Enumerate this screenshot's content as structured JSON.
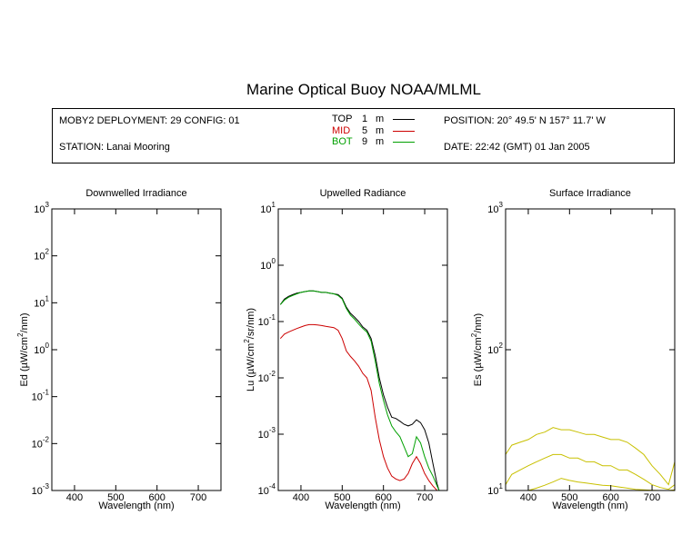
{
  "header": {
    "title": "Marine Optical Buoy NOAA/MLML",
    "deployment": "MOBY2 DEPLOYMENT: 29 CONFIG: 01",
    "station": "STATION: Lanai Mooring",
    "position": "POSITION: 20° 49.5' N   157° 11.7' W",
    "date": "DATE: 22:42 (GMT) 01 Jan 2005",
    "legend": [
      {
        "label": "TOP",
        "depth": "1",
        "unit": "m",
        "color": "#000000"
      },
      {
        "label": "MID",
        "depth": "5",
        "unit": "m",
        "color": "#cc0000"
      },
      {
        "label": "BOT",
        "depth": "9",
        "unit": "m",
        "color": "#00a000"
      }
    ]
  },
  "chart_data": [
    {
      "type": "line",
      "title": "Downwelled Irradiance",
      "xlabel": "Wavelength (nm)",
      "ylabel_prefix": "Ed  (µW/cm",
      "ylabel_sup": "2",
      "ylabel_suffix": "/nm)",
      "xlim": [
        345,
        755
      ],
      "xticks": [
        400,
        500,
        600,
        700
      ],
      "ylim_log10": [
        -3,
        3
      ],
      "ytick_exponents": [
        -3,
        -2,
        -1,
        0,
        1,
        2,
        3
      ],
      "scale": "log",
      "series": []
    },
    {
      "type": "line",
      "title": "Upwelled Radiance",
      "xlabel": "Wavelength (nm)",
      "ylabel_prefix": "Lu  (µW/cm",
      "ylabel_sup": "2",
      "ylabel_suffix": "/sr/nm)",
      "xlim": [
        345,
        755
      ],
      "xticks": [
        400,
        500,
        600,
        700
      ],
      "ylim_log10": [
        -4,
        1
      ],
      "ytick_exponents": [
        -4,
        -3,
        -2,
        -1,
        0,
        1
      ],
      "scale": "log",
      "series": [
        {
          "color": "#000000",
          "x": [
            350,
            360,
            370,
            380,
            390,
            400,
            410,
            420,
            430,
            440,
            450,
            460,
            470,
            480,
            490,
            500,
            510,
            520,
            530,
            540,
            550,
            560,
            570,
            580,
            590,
            600,
            610,
            620,
            630,
            640,
            650,
            660,
            670,
            680,
            690,
            700,
            710,
            720,
            730,
            735
          ],
          "y": [
            0.2,
            0.25,
            0.28,
            0.3,
            0.32,
            0.33,
            0.34,
            0.35,
            0.35,
            0.34,
            0.33,
            0.33,
            0.32,
            0.31,
            0.3,
            0.26,
            0.18,
            0.14,
            0.12,
            0.1,
            0.08,
            0.07,
            0.05,
            0.025,
            0.01,
            0.005,
            0.003,
            0.002,
            0.0019,
            0.0017,
            0.0015,
            0.0014,
            0.0015,
            0.0018,
            0.0016,
            0.0012,
            0.0007,
            0.0003,
            0.00013,
            0.0001
          ]
        },
        {
          "color": "#00a000",
          "x": [
            350,
            360,
            370,
            380,
            390,
            400,
            410,
            420,
            430,
            440,
            450,
            460,
            470,
            480,
            490,
            500,
            510,
            520,
            530,
            540,
            550,
            560,
            570,
            580,
            590,
            600,
            610,
            620,
            630,
            640,
            650,
            660,
            670,
            680,
            690,
            700,
            710,
            720,
            730,
            735
          ],
          "y": [
            0.2,
            0.24,
            0.27,
            0.29,
            0.31,
            0.33,
            0.34,
            0.35,
            0.35,
            0.34,
            0.33,
            0.33,
            0.32,
            0.31,
            0.29,
            0.25,
            0.17,
            0.13,
            0.11,
            0.09,
            0.075,
            0.065,
            0.045,
            0.02,
            0.008,
            0.004,
            0.0022,
            0.0014,
            0.0011,
            0.0009,
            0.0006,
            0.0004,
            0.00045,
            0.0009,
            0.0007,
            0.0004,
            0.00025,
            0.00018,
            0.00012,
            0.0001
          ]
        },
        {
          "color": "#cc0000",
          "x": [
            350,
            360,
            370,
            380,
            390,
            400,
            410,
            420,
            430,
            440,
            450,
            460,
            470,
            480,
            490,
            500,
            510,
            520,
            530,
            540,
            550,
            560,
            570,
            580,
            590,
            600,
            610,
            620,
            630,
            640,
            650,
            660,
            670,
            680,
            690,
            700,
            710,
            720,
            730,
            735
          ],
          "y": [
            0.05,
            0.06,
            0.065,
            0.07,
            0.075,
            0.08,
            0.085,
            0.088,
            0.088,
            0.087,
            0.085,
            0.082,
            0.08,
            0.078,
            0.07,
            0.05,
            0.03,
            0.024,
            0.02,
            0.016,
            0.012,
            0.01,
            0.006,
            0.002,
            0.0008,
            0.0004,
            0.00025,
            0.00018,
            0.00016,
            0.00015,
            0.00016,
            0.0002,
            0.0003,
            0.0004,
            0.0003,
            0.0002,
            0.00015,
            0.00012,
            0.0001,
            0.0001
          ]
        }
      ]
    },
    {
      "type": "line",
      "title": "Surface Irradiance",
      "xlabel": "Wavelength (nm)",
      "ylabel_prefix": "Es  (µW/cm",
      "ylabel_sup": "2",
      "ylabel_suffix": "/nm)",
      "xlim": [
        345,
        755
      ],
      "xticks": [
        400,
        500,
        600,
        700
      ],
      "ylim_log10": [
        1,
        3
      ],
      "ytick_exponents": [
        1,
        2,
        3
      ],
      "scale": "log",
      "series": [
        {
          "color": "#c8c000",
          "x": [
            345,
            360,
            380,
            400,
            420,
            440,
            460,
            480,
            500,
            520,
            540,
            560,
            580,
            600,
            620,
            640,
            660,
            680,
            700,
            720,
            740,
            755
          ],
          "y": [
            18,
            21,
            22,
            23,
            25,
            26,
            28,
            27,
            27,
            26,
            25,
            25,
            24,
            23,
            23,
            22,
            20,
            18,
            15,
            13,
            11,
            16
          ]
        },
        {
          "color": "#c8c000",
          "x": [
            345,
            360,
            380,
            400,
            420,
            440,
            460,
            480,
            500,
            520,
            540,
            560,
            580,
            600,
            620,
            640,
            660,
            680,
            700,
            720,
            740,
            755
          ],
          "y": [
            11,
            13,
            14,
            15,
            16,
            17,
            18,
            18,
            17,
            17,
            16,
            16,
            15,
            15,
            14,
            14,
            13,
            12,
            11,
            10.5,
            10.2,
            11
          ]
        },
        {
          "color": "#c8c000",
          "x": [
            400,
            420,
            440,
            460,
            480,
            500,
            520,
            540,
            560,
            580,
            600,
            620,
            640,
            660,
            680,
            700,
            720,
            740,
            755
          ],
          "y": [
            10,
            10.4,
            10.9,
            11.5,
            12.2,
            11.8,
            11.5,
            11.3,
            11.1,
            10.9,
            10.8,
            10.6,
            10.4,
            10.2,
            10.1,
            10.05,
            10,
            10,
            10.1
          ]
        }
      ]
    }
  ]
}
